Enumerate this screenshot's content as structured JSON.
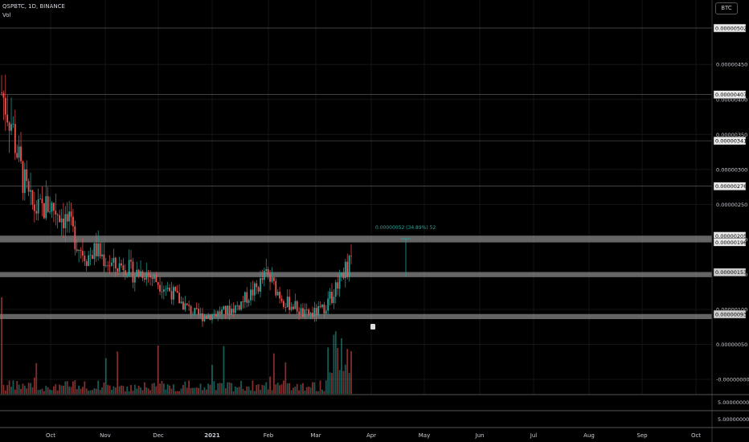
{
  "header": {
    "symbol_line": "QSPBTC, 1D, BINANCE",
    "indicator": "Vol"
  },
  "currency_badge": "BTC",
  "measure_label": "0.00000052 (34.89%) 52",
  "price_axis": {
    "ticks": [
      "0.00000450",
      "0.00000400",
      "0.00000350",
      "0.00000300",
      "0.00000250",
      "0.00000200",
      "0.00000150",
      "0.00000100",
      "0.00000050",
      "-0.00000000"
    ],
    "labels": [
      {
        "text": "0.00000502",
        "highlight": false
      },
      {
        "text": "0.00000407",
        "highlight": false
      },
      {
        "text": "0.00000341",
        "highlight": false
      },
      {
        "text": "0.00000276",
        "highlight": false
      },
      {
        "text": "0.00000205",
        "highlight": false
      },
      {
        "text": "0.00000196",
        "highlight": false
      },
      {
        "text": "0.00000153",
        "highlight": true
      },
      {
        "text": "0.00000093",
        "highlight": true
      }
    ],
    "sub_pane_1": "5.00000000",
    "sub_pane_2": "5.00000000"
  },
  "time_axis": [
    "Oct",
    "Nov",
    "Dec",
    "2021",
    "Feb",
    "Mar",
    "Apr",
    "May",
    "Jun",
    "Jul",
    "Aug",
    "Sep",
    "Oct"
  ],
  "chart_data": {
    "type": "candlestick",
    "symbol": "QSPBTC",
    "interval": "1D",
    "exchange": "BINANCE",
    "y_range": [
      -5e-08,
      5.2e-06
    ],
    "horizontal_levels": [
      5.02e-06,
      4.07e-06,
      3.41e-06,
      2.76e-06,
      2.05e-06,
      1.96e-06,
      1.53e-06,
      9.3e-07
    ],
    "zone_bands": [
      {
        "low": 1.96e-06,
        "high": 2.05e-06
      },
      {
        "low": 1.46e-06,
        "high": 1.53e-06
      },
      {
        "low": 8.8e-07,
        "high": 9.3e-07
      }
    ],
    "up_color": "#26a69a",
    "down_color": "#ef5350",
    "close_path": [
      [
        "Sep 21",
        4.1e-06
      ],
      [
        "Sep 25",
        3.7e-06
      ],
      [
        "Oct 1",
        3e-06
      ],
      [
        "Oct 5",
        2.5e-06
      ],
      [
        "Oct 10",
        2.4e-06
      ],
      [
        "Oct 15",
        2.5e-06
      ],
      [
        "Oct 20",
        2.4e-06
      ],
      [
        "Oct 25",
        2.25e-06
      ],
      [
        "Nov 1",
        1.95e-06
      ],
      [
        "Nov 5",
        1.75e-06
      ],
      [
        "Nov 10",
        1.85e-06
      ],
      [
        "Nov 15",
        1.7e-06
      ],
      [
        "Nov 20",
        1.6e-06
      ],
      [
        "Nov 25",
        1.65e-06
      ],
      [
        "Dec 1",
        1.5e-06
      ],
      [
        "Dec 5",
        1.55e-06
      ],
      [
        "Dec 10",
        1.45e-06
      ],
      [
        "Dec 15",
        1.35e-06
      ],
      [
        "Dec 20",
        1.25e-06
      ],
      [
        "Dec 25",
        1.1e-06
      ],
      [
        "Jan 1",
        9.8e-07
      ],
      [
        "Jan 5",
        9e-07
      ],
      [
        "Jan 10",
        9.2e-07
      ],
      [
        "Jan 15",
        9.5e-07
      ],
      [
        "Jan 20",
        9.8e-07
      ],
      [
        "Jan 25",
        1.05e-06
      ],
      [
        "Feb 1",
        1.18e-06
      ],
      [
        "Feb 5",
        1.3e-06
      ],
      [
        "Feb 10",
        1.5e-06
      ],
      [
        "Feb 15",
        1.3e-06
      ],
      [
        "Feb 20",
        1.1e-06
      ],
      [
        "Feb 25",
        1.05e-06
      ],
      [
        "Mar 1",
        9.2e-07
      ],
      [
        "Mar 5",
        9.4e-07
      ],
      [
        "Mar 10",
        1e-06
      ],
      [
        "Mar 15",
        1.2e-06
      ],
      [
        "Mar 18",
        1.55e-06
      ],
      [
        "Mar 21",
        1.65e-06
      ]
    ]
  },
  "colors": {
    "background": "#000000",
    "grid": "#1b1b1b",
    "zone": "#9a9a9a",
    "measure": "#26a69a"
  }
}
